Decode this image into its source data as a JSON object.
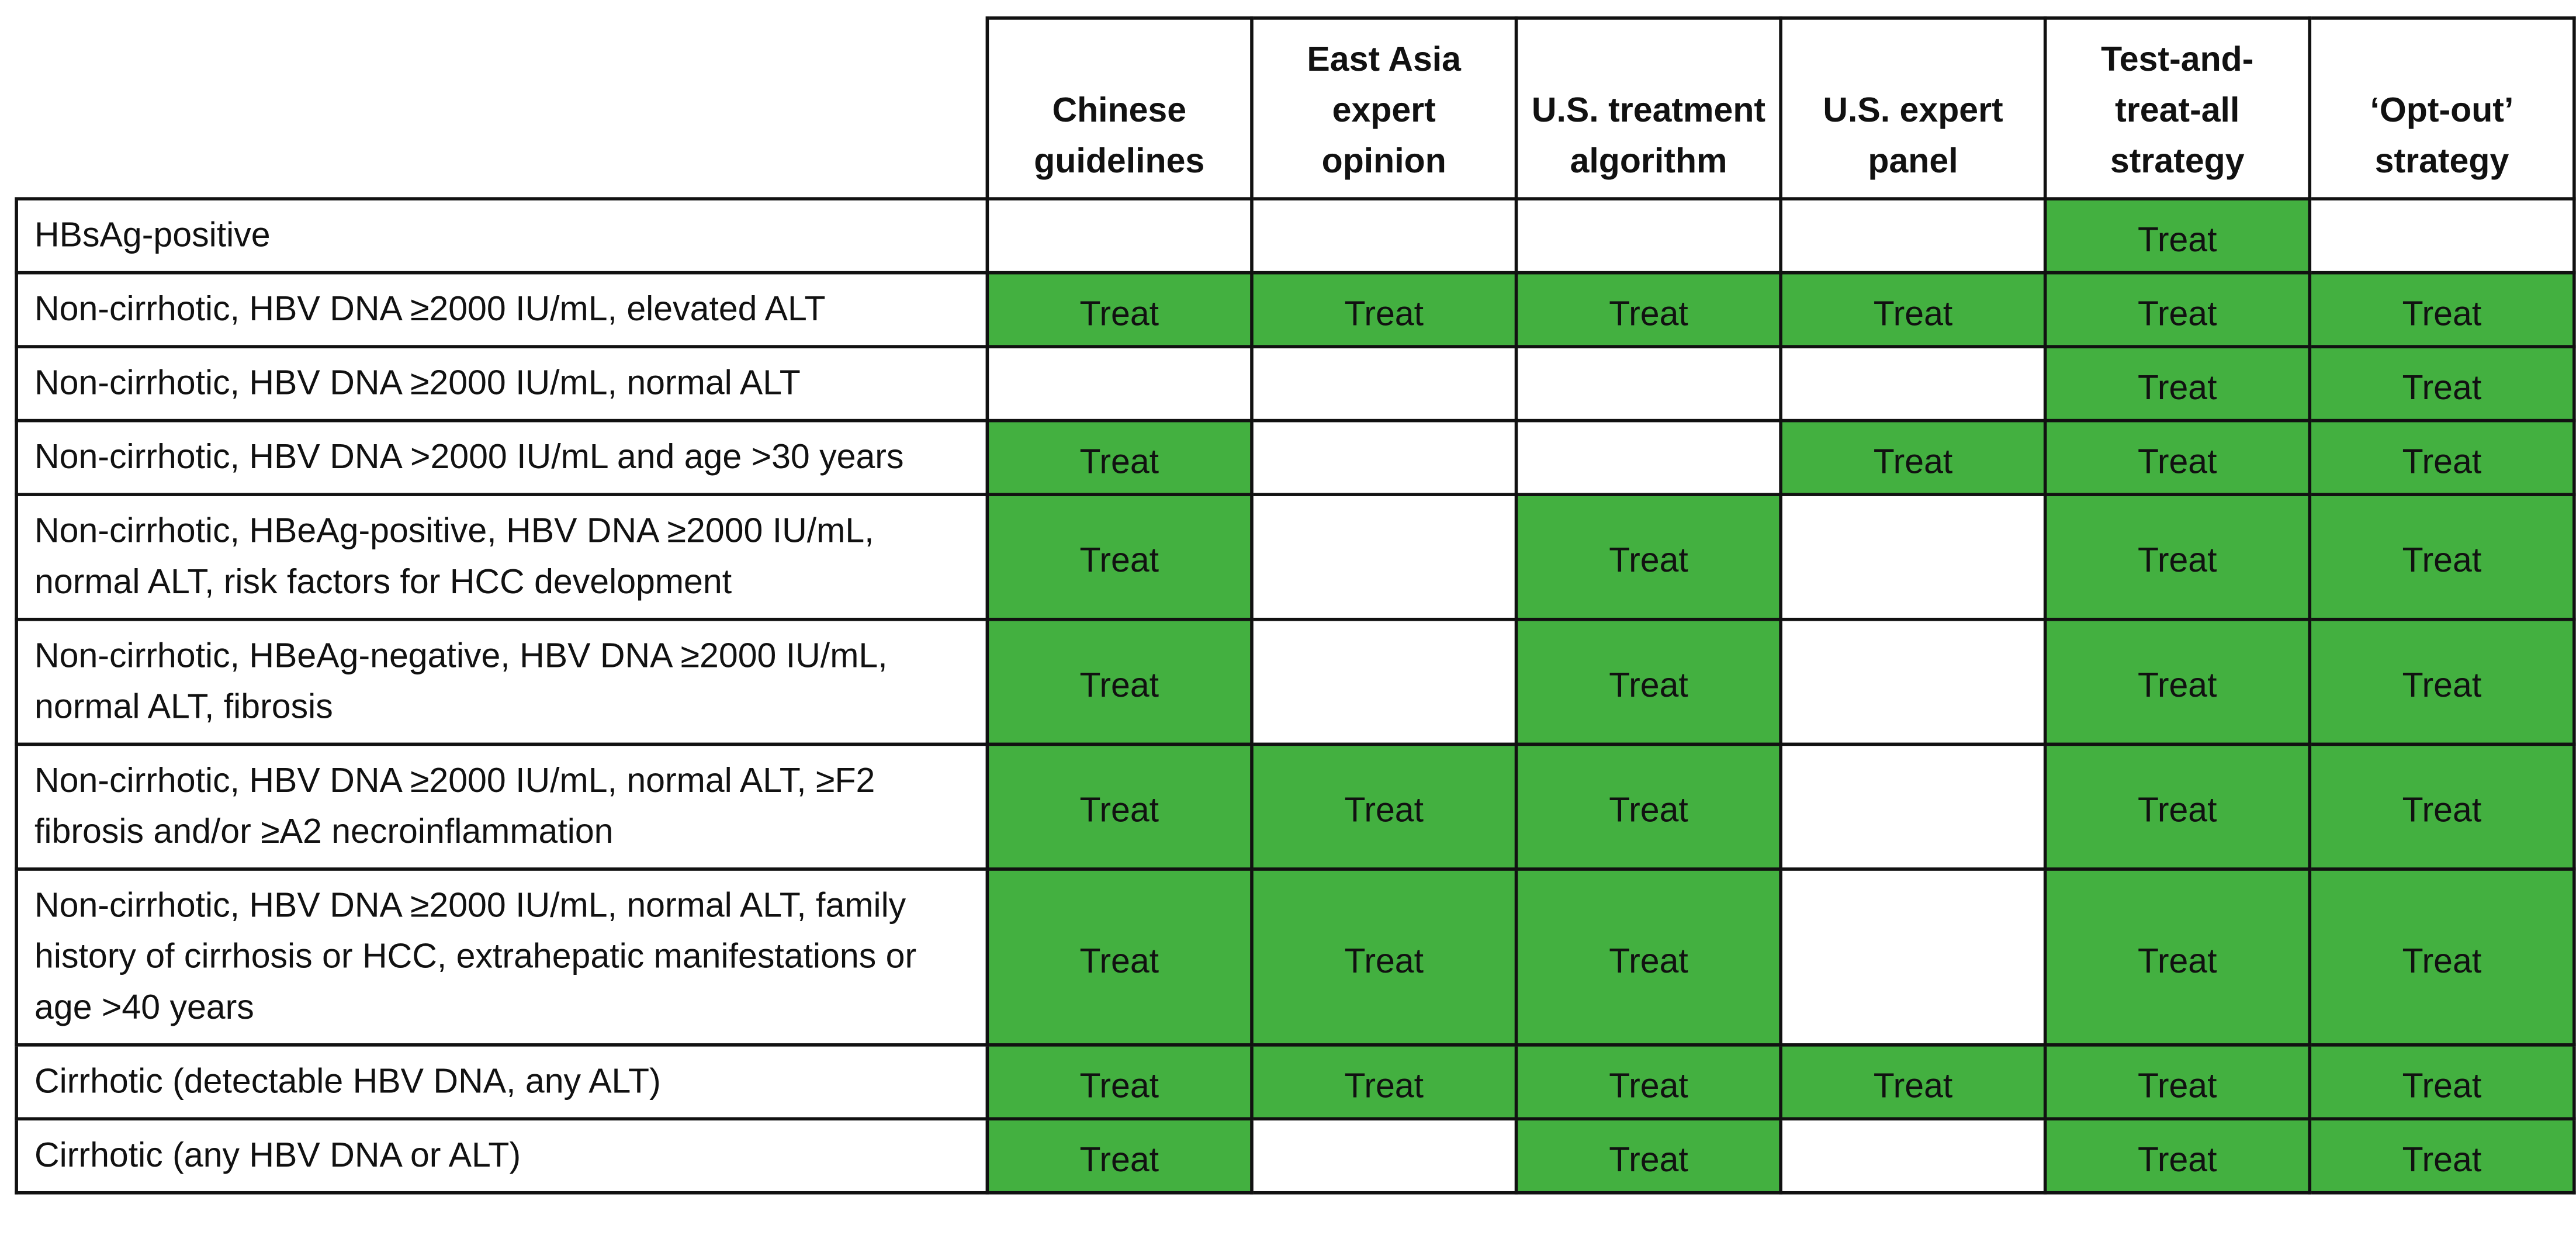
{
  "table": {
    "columns": [
      "Chinese guidelines",
      "East Asia expert opinion",
      "U.S. treatment algorithm",
      "U.S. expert panel",
      "Test-and-treat-all strategy",
      "‘Opt-out’ strategy"
    ],
    "rows": [
      {
        "label": "HBsAg-positive",
        "cells": [
          null,
          null,
          null,
          null,
          "Treat",
          null
        ]
      },
      {
        "label": "Non-cirrhotic, HBV DNA ≥2000 IU/mL, elevated ALT",
        "cells": [
          "Treat",
          "Treat",
          "Treat",
          "Treat",
          "Treat",
          "Treat"
        ]
      },
      {
        "label": "Non-cirrhotic, HBV DNA ≥2000 IU/mL, normal ALT",
        "cells": [
          null,
          null,
          null,
          null,
          "Treat",
          "Treat"
        ]
      },
      {
        "label": "Non-cirrhotic, HBV DNA >2000 IU/mL and age >30 years",
        "cells": [
          "Treat",
          null,
          null,
          "Treat",
          "Treat",
          "Treat"
        ]
      },
      {
        "label": "Non-cirrhotic, HBeAg-positive, HBV DNA ≥2000 IU/mL, normal ALT, risk factors for HCC development",
        "cells": [
          "Treat",
          null,
          "Treat",
          null,
          "Treat",
          "Treat"
        ]
      },
      {
        "label": "Non-cirrhotic, HBeAg-negative, HBV DNA ≥2000 IU/mL, normal ALT, fibrosis",
        "cells": [
          "Treat",
          null,
          "Treat",
          null,
          "Treat",
          "Treat"
        ]
      },
      {
        "label": "Non-cirrhotic, HBV DNA ≥2000 IU/mL, normal ALT, ≥F2 fibrosis and/or ≥A2 necroinflammation",
        "cells": [
          "Treat",
          "Treat",
          "Treat",
          null,
          "Treat",
          "Treat"
        ]
      },
      {
        "label": "Non-cirrhotic, HBV DNA ≥2000 IU/mL, normal ALT, family history of cirrhosis or HCC, extrahepatic manifestations or age >40 years",
        "cells": [
          "Treat",
          "Treat",
          "Treat",
          null,
          "Treat",
          "Treat"
        ]
      },
      {
        "label": "Cirrhotic (detectable HBV DNA, any ALT)",
        "cells": [
          "Treat",
          "Treat",
          "Treat",
          "Treat",
          "Treat",
          "Treat"
        ]
      },
      {
        "label": "Cirrhotic (any HBV DNA or ALT)",
        "cells": [
          "Treat",
          null,
          "Treat",
          null,
          "Treat",
          "Treat"
        ]
      }
    ]
  }
}
